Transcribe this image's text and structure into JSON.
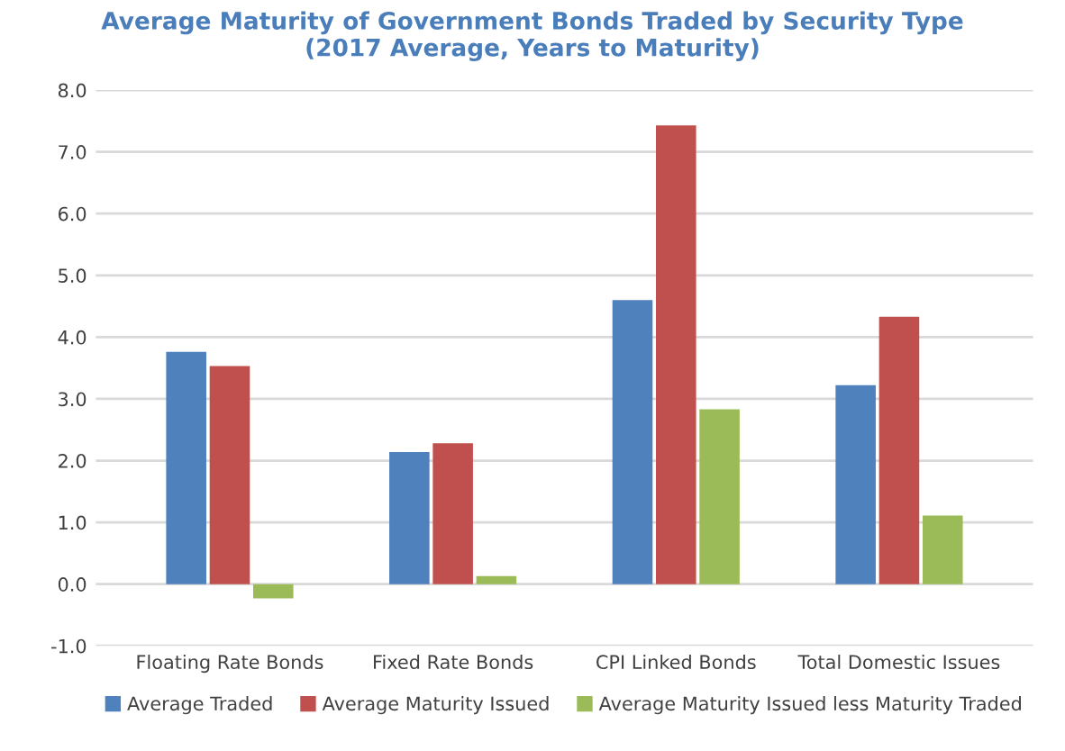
{
  "chart_data": {
    "type": "bar",
    "title": "Average Maturity of Government Bonds Traded by Security Type\n(2017 Average, Years to Maturity)",
    "categories": [
      "Floating Rate Bonds",
      "Fixed Rate Bonds",
      "CPI Linked Bonds",
      "Total Domestic Issues"
    ],
    "series": [
      {
        "name": "Average Traded",
        "color": "#4f81bd",
        "values": [
          3.76,
          2.14,
          4.6,
          3.22
        ]
      },
      {
        "name": "Average Maturity Issued",
        "color": "#c0504d",
        "values": [
          3.53,
          2.28,
          7.43,
          4.33
        ]
      },
      {
        "name": "Average Maturity Issued less Maturity Traded",
        "color": "#9bbb59",
        "values": [
          -0.23,
          0.13,
          2.83,
          1.11
        ]
      }
    ],
    "ylim": [
      -1,
      8
    ],
    "yticks": [
      {
        "value": -1,
        "label": "-1.0"
      },
      {
        "value": 0,
        "label": "0.0"
      },
      {
        "value": 1,
        "label": "1.0"
      },
      {
        "value": 2,
        "label": "2.0"
      },
      {
        "value": 3,
        "label": "3.0"
      },
      {
        "value": 4,
        "label": "4.0"
      },
      {
        "value": 5,
        "label": "5.0"
      },
      {
        "value": 6,
        "label": "6.0"
      },
      {
        "value": 7,
        "label": "7.0"
      },
      {
        "value": 8,
        "label": "8.0"
      }
    ],
    "grid": "y",
    "legend": "bottom"
  }
}
